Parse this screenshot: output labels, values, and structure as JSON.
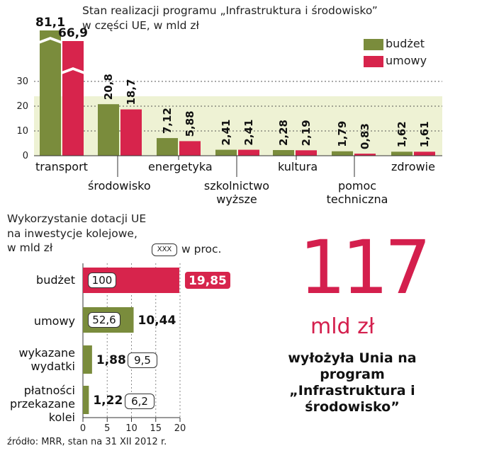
{
  "chart_data": [
    {
      "type": "bar",
      "title": "Stan realizacji programu „Infrastruktura i środowisko”",
      "subtitle": "w części UE, w mld zł",
      "categories": [
        "transport",
        "środowisko",
        "energetyka",
        "szkolnictwo wyższe",
        "kultura",
        "pomoc techniczna",
        "zdrowie"
      ],
      "series": [
        {
          "name": "budżet",
          "values": [
            81.1,
            20.8,
            7.12,
            2.41,
            2.28,
            1.79,
            1.62
          ],
          "labels": [
            "81,1",
            "20,8",
            "7,12",
            "2,41",
            "2,28",
            "1,79",
            "1,62"
          ],
          "color": "#7a8c3c"
        },
        {
          "name": "umowy",
          "values": [
            66.9,
            18.7,
            5.88,
            2.41,
            2.19,
            0.83,
            1.61
          ],
          "labels": [
            "66,9",
            "18,7",
            "5,88",
            "2,41",
            "2,19",
            "0,83",
            "1,61"
          ],
          "color": "#d7244c"
        }
      ],
      "yticks": [
        0,
        10,
        20,
        30
      ],
      "ylim": [
        0,
        30
      ],
      "axis_break": true,
      "grid": true,
      "legend": "top-right"
    },
    {
      "type": "bar",
      "orientation": "horizontal",
      "title": "Wykorzystanie dotacji UE na inwestycje kolejowe,",
      "unit": "w mld zł",
      "pct_legend_box": "XXX",
      "pct_legend_text": "w proc.",
      "categories": [
        "budżet",
        "umowy",
        "wykazane wydatki",
        "płatności przekazane kolei"
      ],
      "values": [
        19.85,
        10.44,
        1.88,
        1.22
      ],
      "value_labels": [
        "19,85",
        "10,44",
        "1,88",
        "1,22"
      ],
      "percent_labels": [
        "100",
        "52,6",
        "9,5",
        "6,2"
      ],
      "colors": [
        "#d7244c",
        "#7a8c3c",
        "#7a8c3c",
        "#7a8c3c"
      ],
      "xticks": [
        0,
        5,
        10,
        15,
        20
      ],
      "xlim": [
        0,
        20
      ]
    }
  ],
  "headline": {
    "number": "117",
    "unit": "mld zł",
    "text": "wyłożyła Unia na program „Infrastruktura i środowisko”"
  },
  "source": "źródło: MRR, stan na 31 XII 2012 r.",
  "colors": {
    "green": "#7a8c3c",
    "red": "#d7244c",
    "accent": "#d41f4d",
    "band": "#eef2d4"
  }
}
